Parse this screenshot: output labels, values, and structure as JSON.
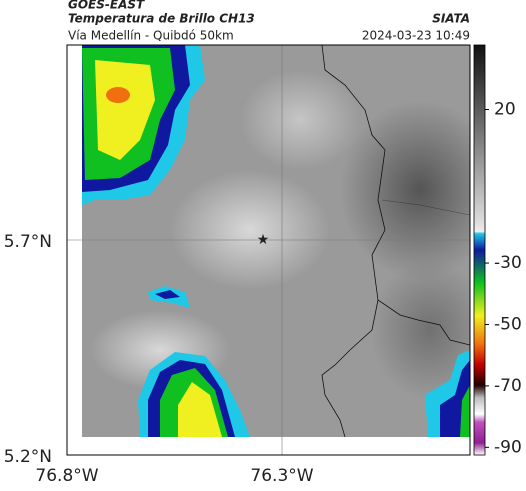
{
  "header": {
    "title": "GOES-EAST",
    "subtitle": "Temperatura de Brillo CH13",
    "caption": "Vía Medellín - Quibdó 50km",
    "source": "SIATA",
    "timestamp": "2024-03-23 10:49"
  },
  "axes": {
    "lat_labels": [
      "5.7°N",
      "5.2°N"
    ],
    "lon_labels": [
      "76.8°W",
      "76.3°W"
    ]
  },
  "colorbar": {
    "lim": [
      -92.5,
      41
    ],
    "ticks": [
      20,
      -30,
      -50,
      -70,
      -90
    ]
  }
}
